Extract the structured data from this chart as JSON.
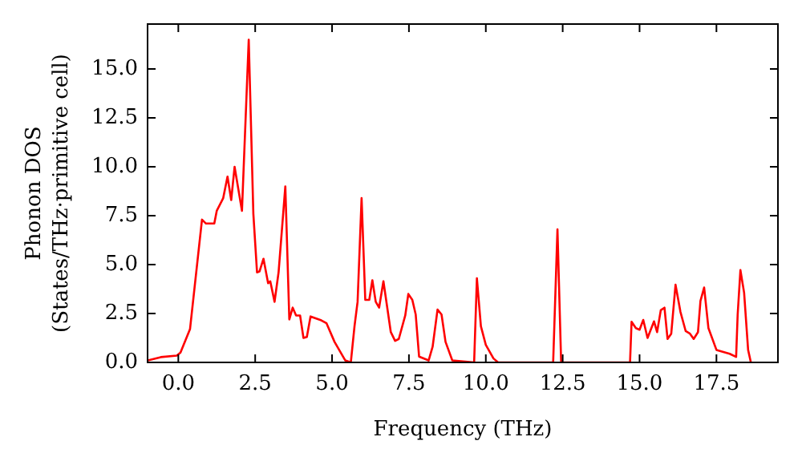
{
  "chart_data": {
    "type": "line",
    "xlabel": "Frequency (THz)",
    "ylabel": "Phonon DOS\n(States/THz·primitive cell)",
    "xlim": [
      -1,
      19.5
    ],
    "ylim": [
      0,
      17.3
    ],
    "xticks": [
      {
        "value": 0,
        "label": "0.0"
      },
      {
        "value": 2.5,
        "label": "2.5"
      },
      {
        "value": 5,
        "label": "5.0"
      },
      {
        "value": 7.5,
        "label": "7.5"
      },
      {
        "value": 10,
        "label": "10.0"
      },
      {
        "value": 12.5,
        "label": "12.5"
      },
      {
        "value": 15,
        "label": "15.0"
      },
      {
        "value": 17.5,
        "label": "17.5"
      }
    ],
    "yticks": [
      {
        "value": 0,
        "label": "0.0"
      },
      {
        "value": 2.5,
        "label": "2.5"
      },
      {
        "value": 5,
        "label": "5.0"
      },
      {
        "value": 7.5,
        "label": "7.5"
      },
      {
        "value": 10,
        "label": "10.0"
      },
      {
        "value": 12.5,
        "label": "12.5"
      },
      {
        "value": 15,
        "label": "15.0"
      }
    ],
    "grid": false,
    "legend": false,
    "marker": "none",
    "line_style": "solid",
    "series": [
      {
        "color": "#ff0000",
        "x": [
          -0.99,
          -0.57,
          -0.05,
          0.07,
          0.38,
          0.77,
          0.9,
          1.17,
          1.25,
          1.46,
          1.6,
          1.72,
          1.83,
          2.07,
          2.29,
          2.44,
          2.56,
          2.64,
          2.77,
          2.92,
          2.99,
          3.13,
          3.26,
          3.48,
          3.61,
          3.72,
          3.83,
          3.96,
          4.07,
          4.18,
          4.3,
          4.65,
          4.82,
          5.08,
          5.43,
          5.61,
          5.73,
          5.83,
          5.96,
          6.08,
          6.21,
          6.31,
          6.42,
          6.53,
          6.67,
          6.91,
          7.05,
          7.17,
          7.38,
          7.48,
          7.61,
          7.72,
          7.83,
          8.14,
          8.27,
          8.43,
          8.56,
          8.69,
          8.91,
          9.62,
          9.71,
          9.84,
          10.0,
          10.25,
          10.4,
          12.19,
          12.33,
          12.45,
          14.69,
          14.74,
          14.88,
          15.0,
          15.12,
          15.26,
          15.47,
          15.57,
          15.69,
          15.81,
          15.91,
          16.03,
          16.17,
          16.33,
          16.5,
          16.64,
          16.76,
          16.9,
          16.98,
          17.1,
          17.24,
          17.5,
          17.93,
          18.14,
          18.19,
          18.28,
          18.4,
          18.53,
          18.62
        ],
        "values": [
          0.1,
          0.27,
          0.35,
          0.5,
          1.7,
          7.3,
          7.1,
          7.1,
          7.75,
          8.4,
          9.5,
          8.3,
          10.0,
          7.75,
          16.5,
          7.6,
          4.6,
          4.65,
          5.3,
          4.05,
          4.15,
          3.1,
          4.6,
          9.0,
          2.2,
          2.8,
          2.4,
          2.4,
          1.25,
          1.3,
          2.35,
          2.15,
          2.0,
          1.05,
          0.1,
          0,
          1.85,
          3.1,
          8.4,
          3.2,
          3.2,
          4.2,
          3.1,
          2.8,
          4.15,
          1.55,
          1.1,
          1.2,
          2.4,
          3.5,
          3.2,
          2.45,
          0.3,
          0.1,
          0.8,
          2.7,
          2.45,
          1.05,
          0.1,
          0,
          4.3,
          1.85,
          0.9,
          0.2,
          0,
          0,
          6.8,
          0,
          0,
          2.08,
          1.75,
          1.67,
          2.17,
          1.25,
          2.1,
          1.55,
          2.67,
          2.8,
          1.2,
          1.47,
          3.97,
          2.58,
          1.6,
          1.47,
          1.2,
          1.55,
          3.14,
          3.83,
          1.75,
          0.64,
          0.44,
          0.28,
          2.44,
          4.72,
          3.56,
          0.64,
          0
        ]
      }
    ]
  }
}
